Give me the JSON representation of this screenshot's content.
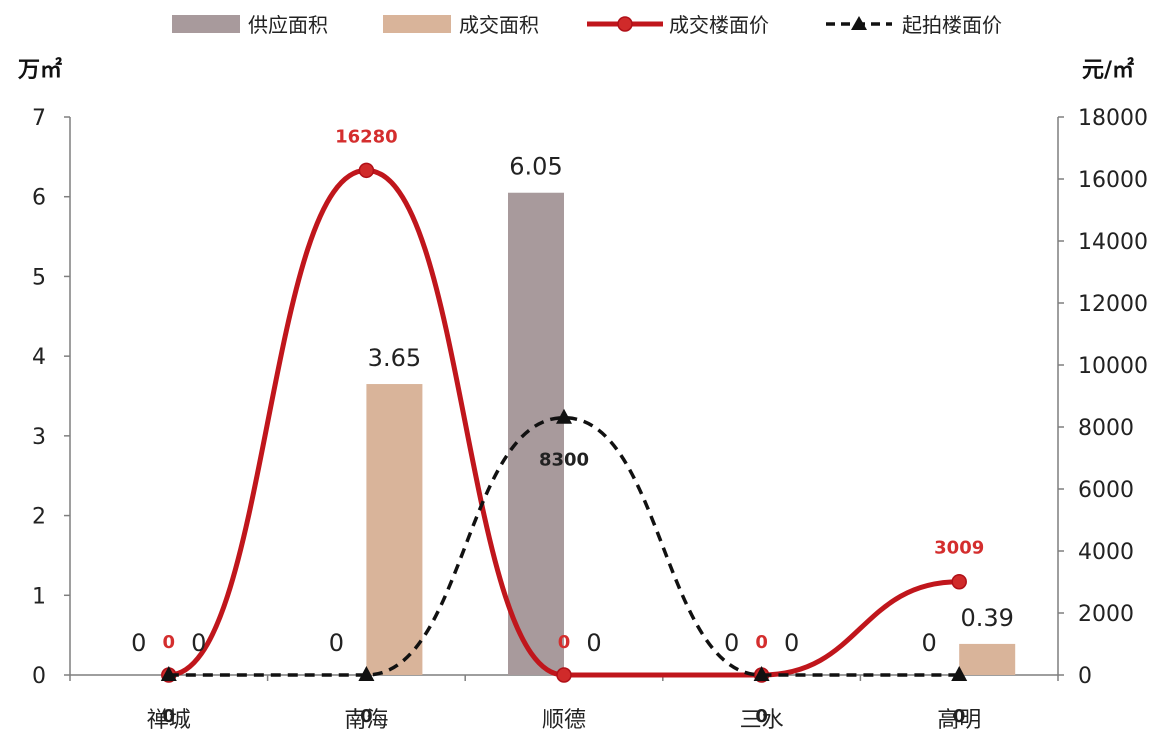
{
  "chart_data": {
    "type": "bar",
    "categories": [
      "禅城",
      "南海",
      "顺德",
      "三水",
      "高明"
    ],
    "series": [
      {
        "name": "供应面积",
        "kind": "bar",
        "axis": "left",
        "values": [
          0,
          0,
          6.05,
          0,
          0
        ],
        "labels": [
          "0",
          "0",
          "6.05",
          "0",
          "0"
        ],
        "color": "#a89a9c"
      },
      {
        "name": "成交面积",
        "kind": "bar",
        "axis": "left",
        "values": [
          0,
          3.65,
          0,
          0,
          0.39
        ],
        "labels": [
          "0",
          "3.65",
          "0",
          "0",
          "0.39"
        ],
        "color": "#d9b49a"
      },
      {
        "name": "成交楼面价",
        "kind": "line",
        "axis": "right",
        "values": [
          0,
          16280,
          0,
          0,
          3009
        ],
        "labels": [
          "0",
          "16280",
          "0",
          "0",
          "3009"
        ],
        "color": "#c0161c"
      },
      {
        "name": "起拍楼面价",
        "kind": "line",
        "axis": "right",
        "values": [
          0,
          0,
          8300,
          0,
          0
        ],
        "labels": [
          "0",
          "0",
          "8300",
          "0",
          "0"
        ],
        "color": "#111111"
      }
    ],
    "y_left": {
      "unit": "万㎡",
      "min": 0,
      "max": 7,
      "ticks": [
        "0",
        "1",
        "2",
        "3",
        "4",
        "5",
        "6",
        "7"
      ]
    },
    "y_right": {
      "unit": "元/㎡",
      "min": 0,
      "max": 18000,
      "ticks": [
        "0",
        "2000",
        "4000",
        "6000",
        "8000",
        "10000",
        "12000",
        "14000",
        "16000",
        "18000"
      ]
    },
    "legend_position": "top",
    "grid": false
  }
}
